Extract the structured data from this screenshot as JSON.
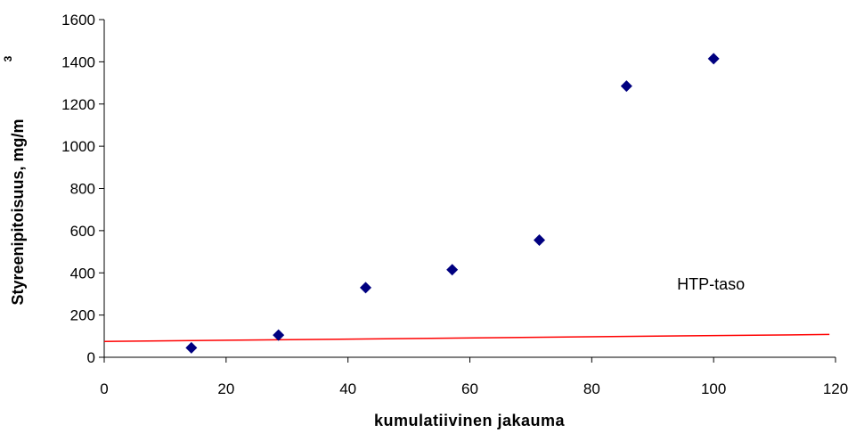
{
  "chart_data": {
    "type": "scatter",
    "xlabel": "kumulatiivinen jakauma",
    "ylabel": "Styreenipitoisuus, mg/m",
    "ylabel_superscript": "3",
    "xlim": [
      0,
      120
    ],
    "ylim": [
      0,
      1600
    ],
    "x_ticks": [
      "0",
      "20",
      "40",
      "60",
      "80",
      "100",
      "120"
    ],
    "y_ticks": [
      "0",
      "200",
      "400",
      "600",
      "800",
      "1000",
      "1200",
      "1400",
      "1600"
    ],
    "grid": false,
    "legend": "none",
    "series": [
      {
        "marker": "diamond",
        "color": "#000080",
        "x": [
          14.3,
          28.6,
          42.9,
          57.1,
          71.4,
          85.7,
          100
        ],
        "y": [
          45,
          105,
          330,
          415,
          555,
          1285,
          1415
        ]
      }
    ],
    "reference_line": {
      "color": "#ff0000",
      "x": [
        0,
        119
      ],
      "y": [
        75,
        108
      ]
    },
    "annotations": [
      {
        "text": "HTP-taso",
        "x": 94,
        "y": 320
      }
    ]
  }
}
